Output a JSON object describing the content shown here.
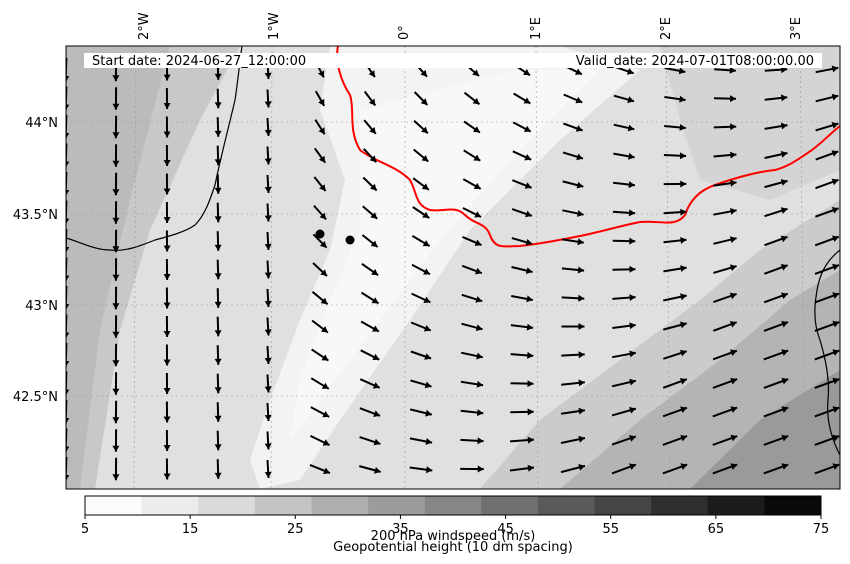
{
  "header": {
    "start_date": "Start date: 2024-06-27_12:00:00",
    "valid_date": "Valid_date: 2024-07-01T08:00:00.00"
  },
  "axes": {
    "lon_labels": [
      "2°W",
      "1°W",
      "0°",
      "1°E",
      "2°E",
      "3°E"
    ],
    "lat_labels": [
      "44°N",
      "43.5°N",
      "43°N",
      "42.5°N"
    ]
  },
  "colorbar": {
    "title": "200 hPa windspeed (m/s)",
    "tick_labels": [
      "5",
      "15",
      "25",
      "35",
      "45",
      "55",
      "65",
      "75"
    ],
    "bins": [
      "#fcfcfc",
      "#ececec",
      "#dadada",
      "#c4c4c4",
      "#b0b0b0",
      "#9c9c9c",
      "#868686",
      "#707070",
      "#5a5a5a",
      "#454545",
      "#2f2f2f",
      "#1c1c1c",
      "#0a0a0a"
    ]
  },
  "legend": {
    "contour_label": "Geopotential height (10 dm spacing)",
    "contour_color": "#ff0000"
  },
  "colors": {
    "coastline": "#000000",
    "wind_vectors": "#000000",
    "station_markers": "#000000"
  },
  "map": {
    "field": "200 hPa windspeed",
    "vectors": "wind direction arrows",
    "stations": 2
  }
}
